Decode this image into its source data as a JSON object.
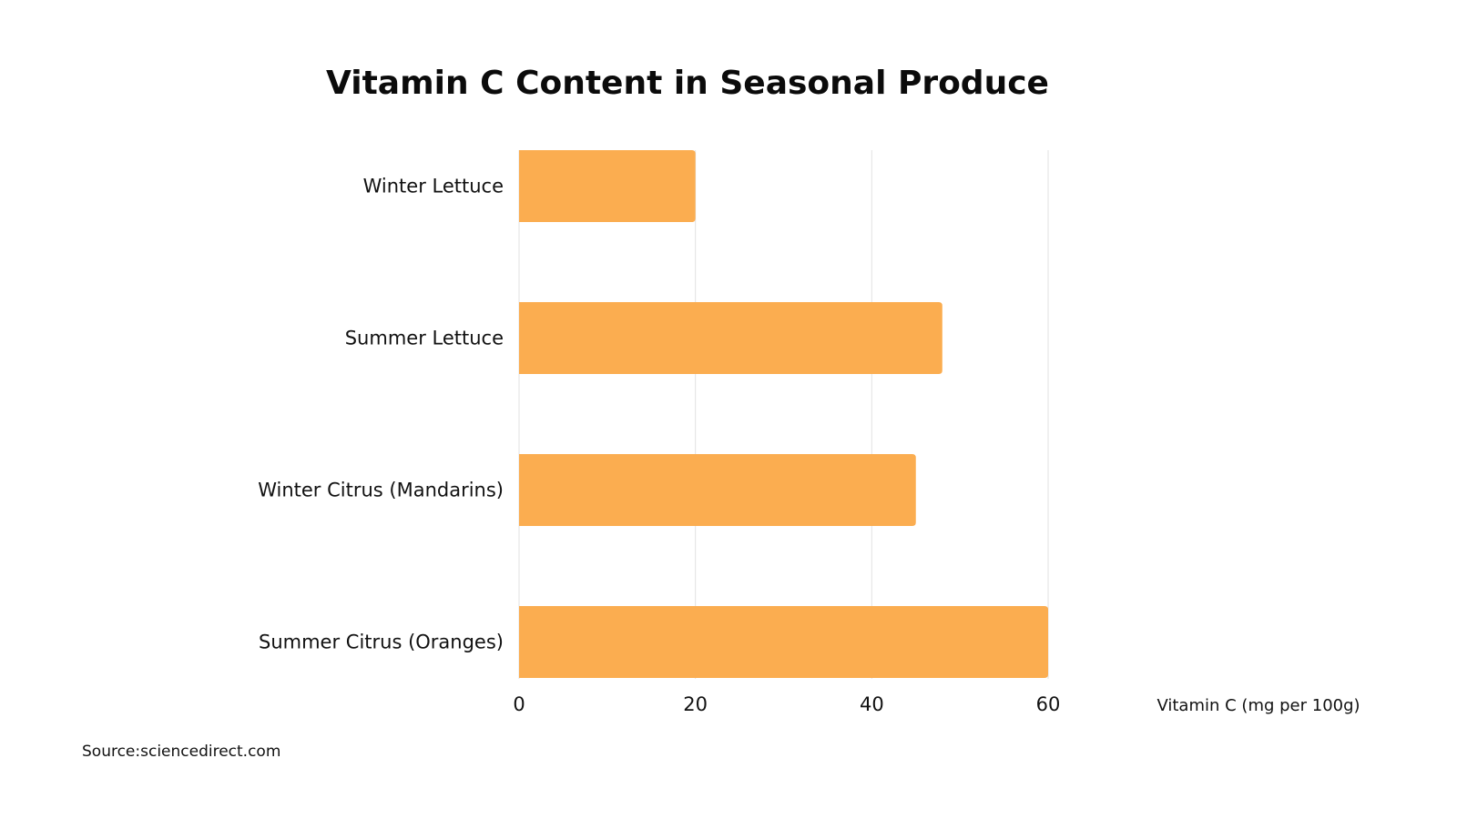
{
  "chart_data": {
    "type": "bar",
    "orientation": "horizontal",
    "title": "Vitamin C Content in Seasonal Produce",
    "xlabel": "Vitamin C (mg per 100g)",
    "ylabel": "",
    "categories": [
      "Winter Lettuce",
      "Summer Lettuce",
      "Winter Citrus (Mandarins)",
      "Summer Citrus (Oranges)"
    ],
    "values": [
      20,
      48,
      45,
      60
    ],
    "xlim": [
      0,
      60
    ],
    "ticks": [
      0,
      20,
      40,
      60
    ],
    "tick_labels": [
      "0",
      "20",
      "40",
      "60"
    ],
    "grid": true,
    "bar_color": "#FBAD50",
    "gridline_color": "#E2E2E2"
  },
  "source": {
    "text": "Source:sciencedirect.com"
  }
}
